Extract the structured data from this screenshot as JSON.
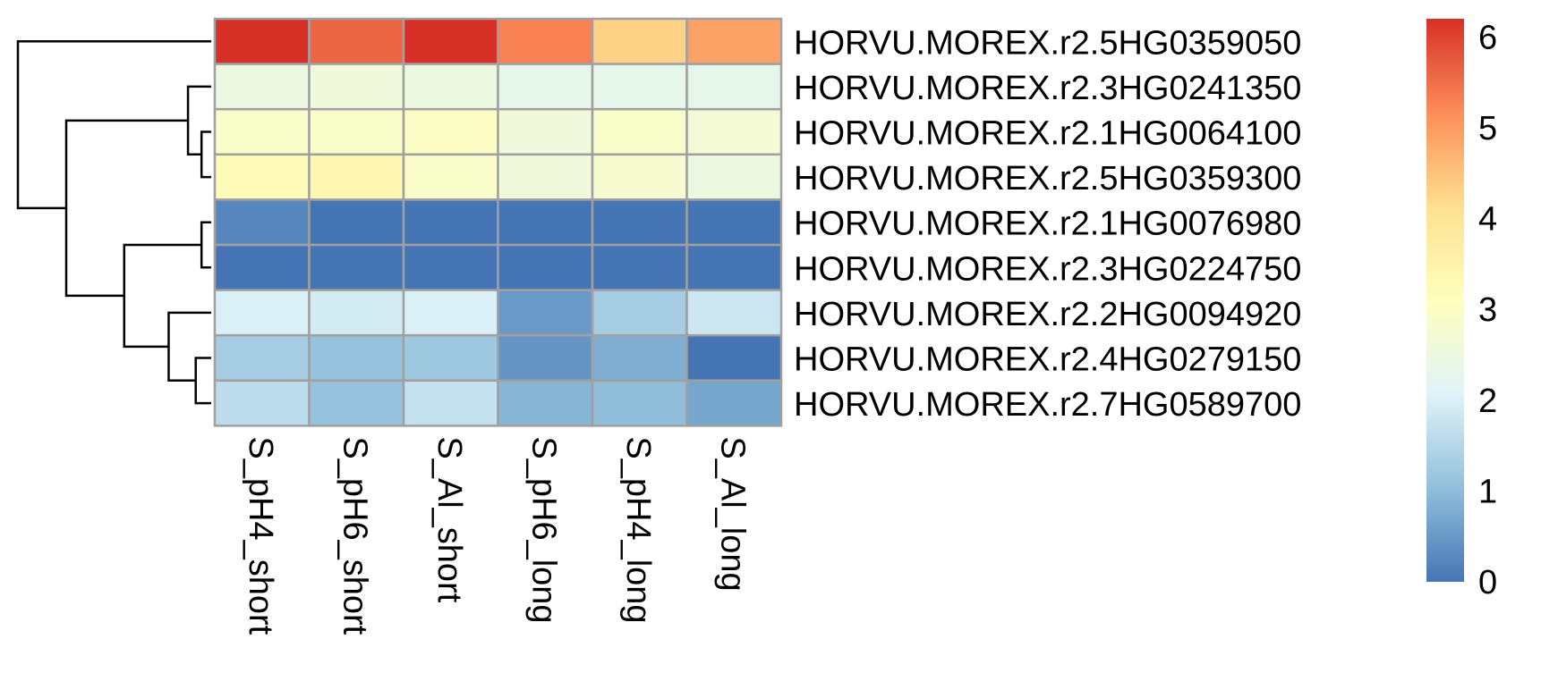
{
  "chart_data": {
    "type": "heatmap",
    "columns": [
      "S_pH4_short",
      "S_pH6_short",
      "S_Al_short",
      "S_pH6_long",
      "S_pH4_long",
      "S_Al_long"
    ],
    "rows": [
      "HORVU.MOREX.r2.5HG0359050",
      "HORVU.MOREX.r2.3HG0241350",
      "HORVU.MOREX.r2.1HG0064100",
      "HORVU.MOREX.r2.5HG0359300",
      "HORVU.MOREX.r2.1HG0076980",
      "HORVU.MOREX.r2.3HG0224750",
      "HORVU.MOREX.r2.2HG0094920",
      "HORVU.MOREX.r2.4HG0279150",
      "HORVU.MOREX.r2.7HG0589700"
    ],
    "values": [
      [
        6.2,
        5.6,
        6.2,
        5.3,
        4.3,
        4.9
      ],
      [
        2.5,
        2.6,
        2.5,
        2.3,
        2.3,
        2.3
      ],
      [
        2.9,
        2.9,
        3.0,
        2.6,
        2.9,
        2.7
      ],
      [
        3.2,
        3.4,
        2.9,
        2.6,
        2.8,
        2.5
      ],
      [
        0.25,
        0.0,
        0.0,
        0.0,
        0.0,
        0.0
      ],
      [
        0.0,
        0.0,
        0.0,
        0.0,
        0.0,
        0.0
      ],
      [
        2.0,
        1.9,
        2.0,
        0.5,
        1.3,
        1.8
      ],
      [
        1.3,
        1.1,
        1.2,
        0.45,
        0.8,
        0.0
      ],
      [
        1.6,
        1.1,
        1.7,
        0.9,
        1.0,
        0.7
      ]
    ],
    "color_scale": {
      "min": 0,
      "max": 6.2,
      "ticks": [
        0,
        1,
        2,
        3,
        4,
        5,
        6
      ],
      "colors": [
        "#4575b4",
        "#91bfdb",
        "#e0f3f8",
        "#ffffbf",
        "#fee090",
        "#fc8d59",
        "#d73027"
      ]
    },
    "row_dendrogram": {
      "merges": [
        [
          -5,
          -6,
          0.05
        ],
        [
          -3,
          -4,
          0.05
        ],
        [
          -8,
          -9,
          0.08
        ],
        [
          -2,
          2,
          0.12
        ],
        [
          -7,
          3,
          0.22
        ],
        [
          1,
          5,
          0.45
        ],
        [
          4,
          6,
          0.75
        ],
        [
          -1,
          7,
          1.0
        ]
      ]
    },
    "cell_border_color": "#a0a0a0",
    "xlabel": "",
    "ylabel": "",
    "title": ""
  }
}
